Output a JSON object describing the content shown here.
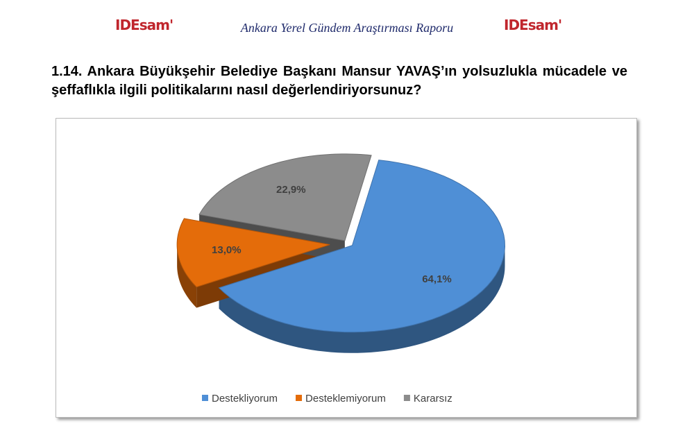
{
  "header": {
    "logo": "IDEsam'",
    "subtitle": "Ankara Yerel Gündem Araştırması Raporu"
  },
  "chart_data": {
    "type": "pie3d",
    "title": "1.14. Ankara Büyükşehir Belediye Başkanı Mansur YAVAŞ’ın yolsuzlukla mücadele ve şeffaflıkla ilgili politikalarını nasıl değerlendiriyorsunuz?",
    "categories": [
      "Destekliyorum",
      "Desteklemiyorum",
      "Kararsız"
    ],
    "values": [
      64.1,
      13.0,
      22.9
    ],
    "value_labels": [
      "64,1%",
      "13,0%",
      "22,9%"
    ],
    "colors": [
      "#4f8fd6",
      "#e46c0a",
      "#8c8c8c"
    ],
    "legend": "bottom"
  }
}
